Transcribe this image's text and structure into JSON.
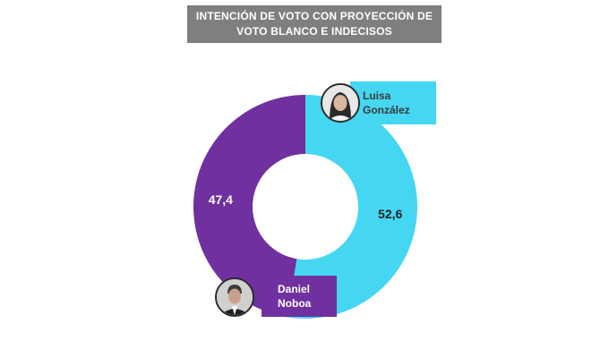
{
  "title": {
    "line1": "INTENCIÓN DE VOTO CON PROYECCIÓN DE",
    "line2": "VOTO BLANCO E INDECISOS"
  },
  "chart_data": {
    "type": "pie",
    "donut": true,
    "categories": [
      "Luisa González",
      "Daniel Noboa"
    ],
    "values": [
      52.6,
      47.4
    ],
    "value_labels": [
      "52,6",
      "47,4"
    ],
    "colors": [
      "#45d6f2",
      "#7030a0"
    ],
    "title": "INTENCIÓN DE VOTO CON PROYECCIÓN DE VOTO BLANCO E INDECISOS"
  },
  "candidates": [
    {
      "first": "Luisa",
      "last": "González",
      "color": "#45d6f2"
    },
    {
      "first": "Daniel",
      "last": "Noboa",
      "color": "#7030a0"
    }
  ],
  "icons": {
    "lg_avatar": "person-photo-icon",
    "dn_avatar": "person-photo-icon"
  }
}
